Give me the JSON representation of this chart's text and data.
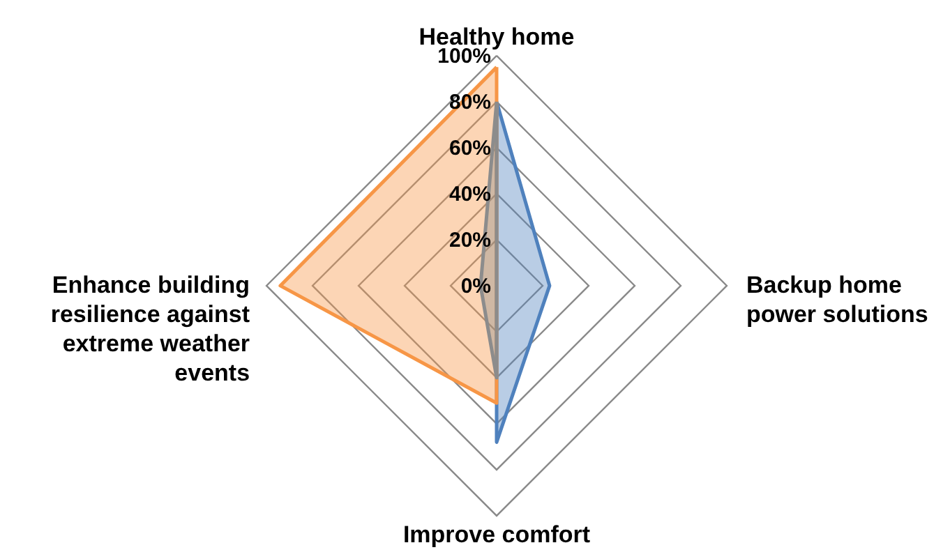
{
  "chart_data": {
    "type": "radar",
    "categories": [
      "Healthy home",
      "Backup home power solutions",
      "Improve comfort",
      "Enhance building resilience against extreme weather events"
    ],
    "series": [
      {
        "color": "#4f81bd",
        "values": [
          80,
          23,
          68,
          0
        ]
      },
      {
        "color": "#f79646",
        "values": [
          95,
          0,
          51,
          94
        ]
      },
      {
        "color": "#8c8c8c",
        "values": [
          80,
          0,
          40,
          7
        ]
      }
    ],
    "ylim": [
      0,
      100
    ],
    "yticks": [
      {
        "value": 0,
        "label": "0%"
      },
      {
        "value": 20,
        "label": "20%"
      },
      {
        "value": 40,
        "label": "40%"
      },
      {
        "value": 60,
        "label": "60%"
      },
      {
        "value": 80,
        "label": "80%"
      },
      {
        "value": 100,
        "label": "100%"
      }
    ],
    "grid": true
  }
}
